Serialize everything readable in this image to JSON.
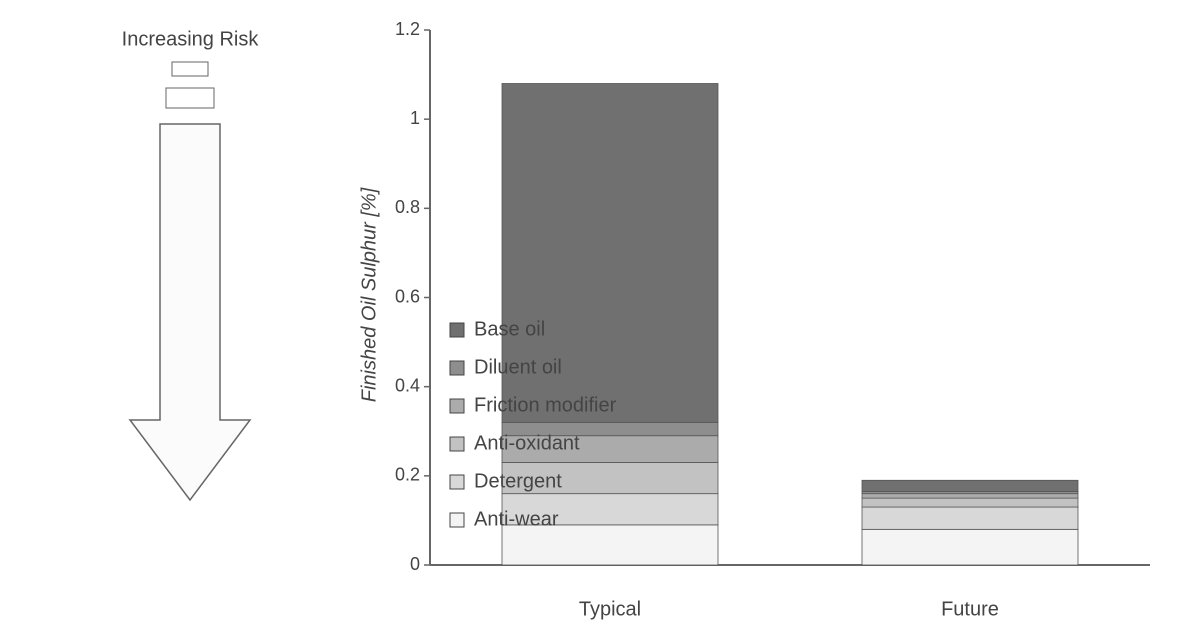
{
  "chart_data": {
    "type": "stacked_bar",
    "annotation": "Increasing Risk",
    "y_label": "Finished Oil Sulphur [%]",
    "categories": [
      "Typical",
      "Future"
    ],
    "series": [
      {
        "name": "Anti-wear",
        "color": "#f4f4f4",
        "values": [
          0.09,
          0.08
        ]
      },
      {
        "name": "Detergent",
        "color": "#d8d8d8",
        "values": [
          0.07,
          0.05
        ]
      },
      {
        "name": "Anti-oxidant",
        "color": "#c2c2c2",
        "values": [
          0.07,
          0.02
        ]
      },
      {
        "name": "Friction modifier",
        "color": "#ababab",
        "values": [
          0.06,
          0.01
        ]
      },
      {
        "name": "Diluent oil",
        "color": "#8e8e8e",
        "values": [
          0.03,
          0.005
        ]
      },
      {
        "name": "Base oil",
        "color": "#707070",
        "values": [
          0.76,
          0.025
        ]
      }
    ],
    "ylim": [
      0,
      1.2
    ],
    "yticks": [
      0,
      0.2,
      0.4,
      0.6,
      0.8,
      1,
      1.2
    ]
  }
}
